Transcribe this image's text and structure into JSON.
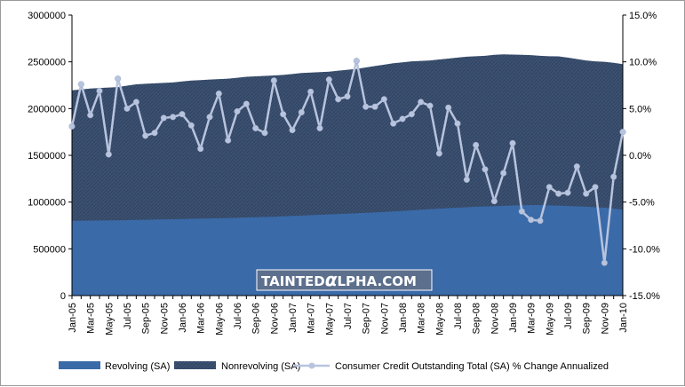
{
  "chart_data": {
    "type": "area",
    "title": "",
    "watermark": {
      "part1": "TAINTED",
      "alpha": "α",
      "part2": "LPHA.COM"
    },
    "left_axis": {
      "ylim": [
        0,
        3000000
      ],
      "ticks": [
        "0",
        "500000",
        "1000000",
        "1500000",
        "2000000",
        "2500000",
        "3000000"
      ],
      "tick_values": [
        0,
        500000,
        1000000,
        1500000,
        2000000,
        2500000,
        3000000
      ]
    },
    "right_axis": {
      "ylim": [
        -15,
        15
      ],
      "ticks": [
        "15.0%",
        "10.0%",
        "5.0%",
        "0.0%",
        "-5.0%",
        "-10.0%",
        "-15.0%"
      ],
      "tick_values": [
        15,
        10,
        5,
        0,
        -5,
        -10,
        -15
      ]
    },
    "x_tick_labels": [
      "Jan-05",
      "Mar-05",
      "May-05",
      "Jul-05",
      "Sep-05",
      "Nov-05",
      "Jan-06",
      "Mar-06",
      "May-06",
      "Jul-06",
      "Sep-06",
      "Nov-06",
      "Jan-07",
      "Mar-07",
      "May-07",
      "Jul-07",
      "Sep-07",
      "Nov-07",
      "Jan-08",
      "Mar-08",
      "May-08",
      "Jul-08",
      "Sep-08",
      "Nov-08",
      "Jan-09",
      "Mar-09",
      "May-09",
      "Jul-09",
      "Sep-09",
      "Nov-09",
      "Jan-10"
    ],
    "num_points": 61,
    "series": [
      {
        "name": "Revolving (SA)",
        "kind": "area",
        "color": "#3a6aa8",
        "values": [
          800000,
          801000,
          802000,
          803000,
          804000,
          805000,
          807000,
          809000,
          811000,
          813000,
          815000,
          817000,
          819000,
          821000,
          823000,
          825000,
          827000,
          829000,
          832000,
          835000,
          838000,
          841000,
          844000,
          848000,
          852000,
          856000,
          860000,
          864000,
          868000,
          872000,
          876000,
          880000,
          885000,
          890000,
          895000,
          900000,
          906000,
          912000,
          918000,
          924000,
          930000,
          935000,
          940000,
          945000,
          950000,
          953000,
          956000,
          960000,
          963000,
          966000,
          968000,
          967000,
          965000,
          962000,
          958000,
          954000,
          950000,
          945000,
          940000,
          930000,
          920000
        ]
      },
      {
        "name": "Nonrevolving (SA)",
        "kind": "area",
        "color": "#364b6b",
        "stacked_total": [
          2195000,
          2205000,
          2215000,
          2220000,
          2225000,
          2230000,
          2245000,
          2260000,
          2265000,
          2270000,
          2275000,
          2280000,
          2290000,
          2300000,
          2305000,
          2310000,
          2315000,
          2320000,
          2330000,
          2340000,
          2345000,
          2350000,
          2355000,
          2360000,
          2370000,
          2380000,
          2385000,
          2390000,
          2395000,
          2405000,
          2415000,
          2425000,
          2440000,
          2455000,
          2470000,
          2485000,
          2495000,
          2505000,
          2510000,
          2515000,
          2525000,
          2535000,
          2545000,
          2555000,
          2560000,
          2565000,
          2575000,
          2580000,
          2578000,
          2575000,
          2572000,
          2565000,
          2560000,
          2558000,
          2545000,
          2530000,
          2515000,
          2505000,
          2500000,
          2490000,
          2475000
        ]
      },
      {
        "name": "Consumer Credit Outstanding Total (SA) % Change Annualized",
        "kind": "line",
        "axis": "right",
        "color": "#b8c4de",
        "values": [
          3.1,
          7.6,
          4.3,
          6.9,
          0.1,
          8.2,
          5.0,
          5.7,
          2.1,
          2.4,
          4.0,
          4.1,
          4.4,
          3.2,
          0.7,
          4.1,
          6.6,
          1.6,
          4.7,
          5.5,
          2.9,
          2.4,
          8.0,
          4.4,
          2.7,
          4.6,
          6.8,
          2.9,
          8.1,
          6.0,
          6.3,
          10.1,
          5.2,
          5.2,
          6.0,
          3.4,
          3.9,
          4.4,
          5.7,
          5.3,
          0.2,
          5.1,
          3.4,
          -2.6,
          1.1,
          -1.5,
          -4.9,
          -1.9,
          1.3,
          -6.0,
          -6.9,
          -7.0,
          -3.4,
          -4.1,
          -4.0,
          -1.2,
          -4.1,
          -3.4,
          -11.5,
          -2.3,
          2.5
        ]
      }
    ],
    "legend": {
      "position": "bottom",
      "items": [
        "Revolving (SA)",
        "Nonrevolving (SA)",
        "Consumer Credit Outstanding Total (SA) % Change Annualized"
      ]
    }
  }
}
